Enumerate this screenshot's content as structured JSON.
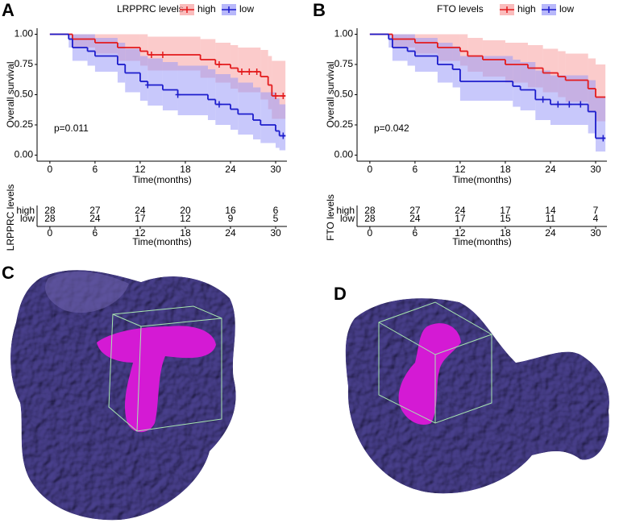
{
  "panel_labels": [
    "A",
    "B",
    "C",
    "D"
  ],
  "chart_data": [
    {
      "type": "step",
      "legend_title": "LRPPRC levels",
      "ylabel": "Overall survival",
      "xlabel": "Time(months)",
      "annotation": "p=0.011",
      "xlim": [
        -1.7,
        31.5
      ],
      "ylim": [
        -0.05,
        1.05
      ],
      "xticks": [
        0,
        6,
        12,
        18,
        24,
        30
      ],
      "yticks": [
        {
          "value": 0,
          "label": "0.00"
        },
        0.25,
        {
          "value": 0.5,
          "label": "0.50"
        },
        0.75,
        {
          "value": 1,
          "label": "1.00"
        }
      ],
      "series": [
        {
          "name": "high",
          "color": "#e31a1c",
          "band_color": "#f8a0a0",
          "x": [
            0,
            3,
            6,
            9,
            12,
            13,
            20,
            22,
            24,
            25,
            28,
            29,
            29.5
          ],
          "values": [
            1,
            0.96,
            0.93,
            0.89,
            0.86,
            0.83,
            0.79,
            0.75,
            0.72,
            0.69,
            0.65,
            0.58,
            0.49
          ],
          "ci_lower": [
            1,
            0.89,
            0.84,
            0.78,
            0.74,
            0.7,
            0.64,
            0.6,
            0.55,
            0.52,
            0.46,
            0.38,
            0.3
          ],
          "ci_upper": [
            1,
            1,
            1,
            1,
            1,
            0.98,
            0.96,
            0.93,
            0.91,
            0.89,
            0.87,
            0.82,
            0.78
          ],
          "censored": [
            13.5,
            15,
            22.5,
            25.5,
            26.5,
            27.5,
            30,
            31
          ]
        },
        {
          "name": "low",
          "color": "#1c1ccc",
          "band_color": "#9a9af8",
          "x": [
            0,
            2.5,
            3,
            5,
            6,
            9,
            10,
            12,
            13,
            15,
            17,
            21,
            22,
            24,
            25,
            27,
            28,
            30,
            30.5
          ],
          "values": [
            1,
            0.96,
            0.89,
            0.86,
            0.82,
            0.75,
            0.68,
            0.61,
            0.58,
            0.54,
            0.5,
            0.46,
            0.42,
            0.38,
            0.34,
            0.29,
            0.25,
            0.2,
            0.16
          ],
          "ci_lower": [
            1,
            0.89,
            0.78,
            0.74,
            0.69,
            0.6,
            0.52,
            0.45,
            0.41,
            0.37,
            0.33,
            0.29,
            0.25,
            0.21,
            0.17,
            0.13,
            0.1,
            0.06,
            0.04
          ],
          "ci_upper": [
            1,
            1,
            1,
            1,
            0.97,
            0.93,
            0.88,
            0.82,
            0.8,
            0.77,
            0.74,
            0.71,
            0.67,
            0.64,
            0.6,
            0.56,
            0.52,
            0.47,
            0.42
          ],
          "censored": [
            13,
            17,
            22.5,
            31
          ]
        }
      ],
      "risk_table": {
        "title": "LRPPRC levels",
        "xlabel": "Time(months)",
        "rows": [
          {
            "name": "high",
            "values": [
              28,
              27,
              24,
              20,
              16,
              6
            ]
          },
          {
            "name": "low",
            "values": [
              28,
              24,
              17,
              12,
              9,
              5
            ]
          }
        ]
      }
    },
    {
      "type": "step",
      "legend_title": "FTO levels",
      "ylabel": "Overall survival",
      "xlabel": "Time(months)",
      "annotation": "p=0.042",
      "xlim": [
        -1.7,
        31.5
      ],
      "ylim": [
        -0.05,
        1.05
      ],
      "xticks": [
        0,
        6,
        12,
        18,
        24,
        30
      ],
      "yticks": [
        {
          "value": 0,
          "label": "0.00"
        },
        0.25,
        {
          "value": 0.5,
          "label": "0.50"
        },
        0.75,
        {
          "value": 1,
          "label": "1.00"
        }
      ],
      "series": [
        {
          "name": "high",
          "color": "#e31a1c",
          "band_color": "#f8a0a0",
          "x": [
            0,
            3,
            6,
            9,
            12,
            13,
            15,
            18,
            21,
            23,
            25,
            26,
            29,
            30
          ],
          "values": [
            1,
            0.96,
            0.93,
            0.89,
            0.86,
            0.82,
            0.79,
            0.75,
            0.72,
            0.68,
            0.65,
            0.62,
            0.55,
            0.48
          ],
          "ci_lower": [
            1,
            0.89,
            0.84,
            0.78,
            0.74,
            0.69,
            0.65,
            0.6,
            0.56,
            0.52,
            0.48,
            0.44,
            0.36,
            0.28
          ],
          "ci_upper": [
            1,
            1,
            1,
            1,
            1,
            0.97,
            0.95,
            0.93,
            0.91,
            0.88,
            0.86,
            0.84,
            0.8,
            0.75
          ]
        },
        {
          "name": "low",
          "color": "#1c1ccc",
          "band_color": "#9a9af8",
          "x": [
            0,
            2.5,
            3,
            5,
            6,
            9,
            11,
            12,
            19,
            20,
            22,
            24,
            29,
            30
          ],
          "values": [
            1,
            0.96,
            0.89,
            0.86,
            0.82,
            0.75,
            0.71,
            0.61,
            0.57,
            0.54,
            0.46,
            0.42,
            0.36,
            0.14
          ],
          "ci_lower": [
            1,
            0.89,
            0.78,
            0.74,
            0.69,
            0.6,
            0.56,
            0.45,
            0.4,
            0.37,
            0.29,
            0.25,
            0.18,
            0.03
          ],
          "ci_upper": [
            1,
            1,
            1,
            1,
            0.97,
            0.93,
            0.9,
            0.82,
            0.79,
            0.77,
            0.7,
            0.66,
            0.62,
            0.48
          ],
          "censored": [
            23,
            25,
            26.5,
            28,
            31
          ]
        }
      ],
      "risk_table": {
        "title": "FTO levels",
        "xlabel": "Time(months)",
        "rows": [
          {
            "name": "high",
            "values": [
              28,
              27,
              24,
              17,
              14,
              7
            ]
          },
          {
            "name": "low",
            "values": [
              28,
              24,
              17,
              15,
              11,
              4
            ]
          }
        ]
      }
    }
  ]
}
